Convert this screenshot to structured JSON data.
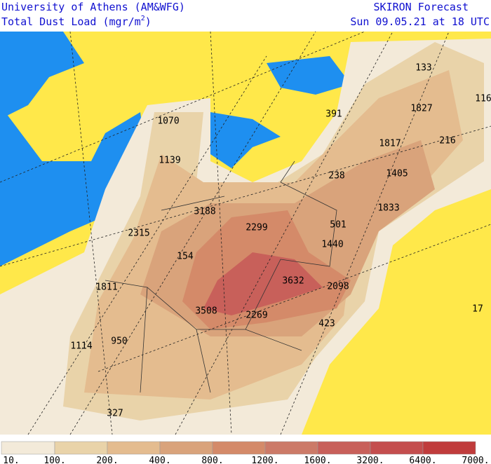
{
  "header": {
    "institution": "University of Athens (AM&WFG)",
    "product": "Total Dust Load (mgr/m",
    "product_sup": "2",
    "product_end": ")",
    "forecast": "SKIRON Forecast",
    "valid": "Sun 09.05.21 at 18 UTC"
  },
  "map_labels": [
    "133",
    "116",
    "1827",
    "391",
    "1817",
    "216",
    "1070",
    "1139",
    "1405",
    "238",
    "1833",
    "3188",
    "2299",
    "501",
    "2315",
    "1440",
    "154",
    "3632",
    "2098",
    "1811",
    "3508",
    "2269",
    "423",
    "17",
    "1114",
    "950",
    "327"
  ],
  "colorbar": {
    "labels": [
      "10.",
      "100.",
      "200.",
      "400.",
      "800.",
      "1200.",
      "1600.",
      "3200.",
      "6400.",
      "7000."
    ],
    "colors": [
      "#f3ead9",
      "#e9d3a9",
      "#e4bc8f",
      "#d9a37b",
      "#d48a69",
      "#cc7a68",
      "#c8605a",
      "#c44e4e",
      "#c03c3c"
    ]
  }
}
